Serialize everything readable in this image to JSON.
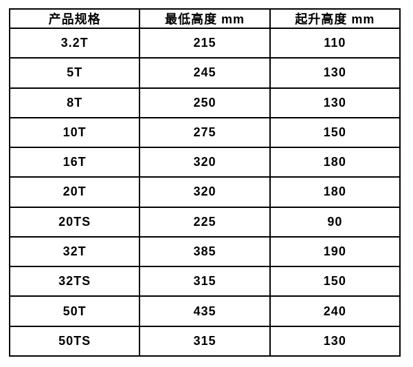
{
  "colors": {
    "border": "#000000",
    "text": "#000000",
    "background": "#ffffff"
  },
  "table": {
    "headers": {
      "spec": "产品规格",
      "min_height": "最低高度 mm",
      "lift_height": "起升高度 mm"
    },
    "rows": [
      {
        "spec": "3.2T",
        "min_height": "215",
        "lift_height": "110"
      },
      {
        "spec": "5T",
        "min_height": "245",
        "lift_height": "130"
      },
      {
        "spec": "8T",
        "min_height": "250",
        "lift_height": "130"
      },
      {
        "spec": "10T",
        "min_height": "275",
        "lift_height": "150"
      },
      {
        "spec": "16T",
        "min_height": "320",
        "lift_height": "180"
      },
      {
        "spec": "20T",
        "min_height": "320",
        "lift_height": "180"
      },
      {
        "spec": "20TS",
        "min_height": "225",
        "lift_height": "90"
      },
      {
        "spec": "32T",
        "min_height": "385",
        "lift_height": "190"
      },
      {
        "spec": "32TS",
        "min_height": "315",
        "lift_height": "150"
      },
      {
        "spec": "50T",
        "min_height": "435",
        "lift_height": "240"
      },
      {
        "spec": "50TS",
        "min_height": "315",
        "lift_height": "130"
      }
    ]
  },
  "chart_data": {
    "type": "table",
    "title": "",
    "columns": [
      "产品规格",
      "最低高度 mm",
      "起升高度 mm"
    ],
    "rows": [
      [
        "3.2T",
        215,
        110
      ],
      [
        "5T",
        245,
        130
      ],
      [
        "8T",
        250,
        130
      ],
      [
        "10T",
        275,
        150
      ],
      [
        "16T",
        320,
        180
      ],
      [
        "20T",
        320,
        180
      ],
      [
        "20TS",
        225,
        90
      ],
      [
        "32T",
        385,
        190
      ],
      [
        "32TS",
        315,
        150
      ],
      [
        "50T",
        435,
        240
      ],
      [
        "50TS",
        315,
        130
      ]
    ],
    "legend_position": "none",
    "grid": true
  }
}
